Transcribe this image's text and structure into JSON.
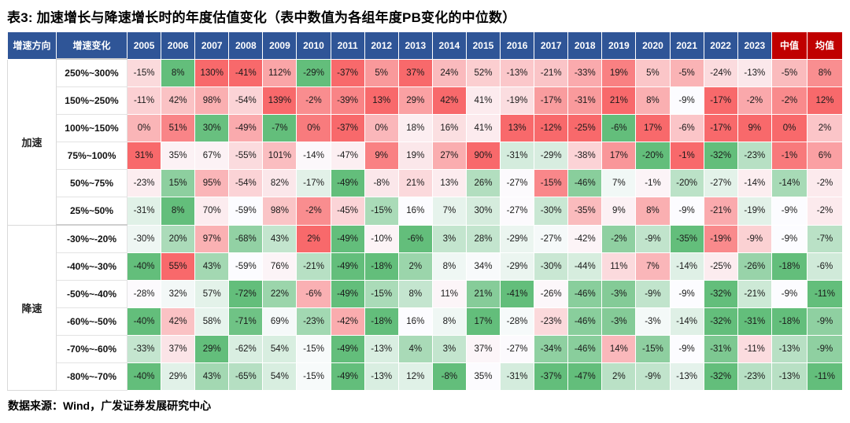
{
  "title": {
    "text": "表3: 加速增长与降速增长时的年度估值变化（表中数值为各组年度PB变化的中位数）"
  },
  "footer": {
    "source": "数据来源：Wind，广发证券发展研究中心"
  },
  "colors": {
    "header_bg": "#2F5597",
    "stat_header_bg": "#C00000",
    "scale_high_red": "#F8696B",
    "scale_mid_white": "#FCFCFF",
    "scale_low_green": "#63BE7B"
  },
  "table": {
    "corner_headers": [
      "增速方向",
      "增速变化"
    ],
    "year_headers": [
      "2005",
      "2006",
      "2007",
      "2008",
      "2009",
      "2010",
      "2011",
      "2012",
      "2013",
      "2014",
      "2015",
      "2016",
      "2017",
      "2018",
      "2019",
      "2020",
      "2021",
      "2022",
      "2023"
    ],
    "stat_headers": [
      "中值",
      "均值"
    ],
    "value_suffix": "%",
    "groups": [
      {
        "direction": "加速",
        "rows": [
          {
            "range": "250%~300%",
            "values": [
              -15,
              8,
              130,
              -41,
              112,
              -29,
              -37,
              5,
              37,
              24,
              52,
              -13,
              -21,
              -33,
              19,
              5,
              -5,
              -24,
              -13,
              -5,
              8
            ]
          },
          {
            "range": "150%~250%",
            "values": [
              -11,
              42,
              98,
              -54,
              139,
              -2,
              -39,
              13,
              29,
              42,
              41,
              -19,
              -17,
              -31,
              21,
              8,
              -9,
              -17,
              -2,
              -2,
              12
            ]
          },
          {
            "range": "100%~150%",
            "values": [
              0,
              51,
              30,
              -49,
              -7,
              0,
              -37,
              0,
              18,
              16,
              41,
              13,
              -12,
              -25,
              -6,
              17,
              -6,
              -17,
              9,
              0,
              2
            ]
          },
          {
            "range": "75%~100%",
            "values": [
              31,
              35,
              67,
              -55,
              101,
              -14,
              -47,
              9,
              19,
              27,
              90,
              -31,
              -29,
              -38,
              17,
              -20,
              -1,
              -32,
              -23,
              -1,
              6
            ]
          },
          {
            "range": "50%~75%",
            "values": [
              -23,
              15,
              95,
              -54,
              82,
              -17,
              -49,
              -8,
              21,
              13,
              26,
              -27,
              -15,
              -46,
              7,
              -1,
              -20,
              -27,
              -14,
              -14,
              -2
            ]
          },
          {
            "range": "25%~50%",
            "values": [
              -31,
              8,
              70,
              -59,
              98,
              -2,
              -45,
              -15,
              16,
              7,
              30,
              -27,
              -30,
              -35,
              9,
              8,
              -9,
              -21,
              -19,
              -9,
              -2
            ]
          }
        ]
      },
      {
        "direction": "降速",
        "rows": [
          {
            "range": "-30%~-20%",
            "values": [
              -30,
              20,
              97,
              -68,
              43,
              2,
              -49,
              -10,
              -6,
              3,
              28,
              -29,
              -27,
              -42,
              -2,
              -9,
              -35,
              -19,
              -9,
              -9,
              -7
            ]
          },
          {
            "range": "-40%~-30%",
            "values": [
              -40,
              55,
              43,
              -59,
              76,
              -21,
              -49,
              -18,
              2,
              8,
              34,
              -29,
              -30,
              -44,
              11,
              7,
              -14,
              -25,
              -26,
              -18,
              -6
            ]
          },
          {
            "range": "-50%~-40%",
            "values": [
              -28,
              32,
              57,
              -72,
              22,
              -6,
              -49,
              -15,
              8,
              11,
              21,
              -41,
              -26,
              -46,
              -3,
              -9,
              -9,
              -32,
              -21,
              -9,
              -11
            ]
          },
          {
            "range": "-60%~-50%",
            "values": [
              -40,
              42,
              58,
              -71,
              69,
              -23,
              -42,
              -18,
              16,
              8,
              17,
              -28,
              -23,
              -46,
              -3,
              -3,
              -14,
              -32,
              -31,
              -18,
              -9
            ]
          },
          {
            "range": "-70%~-60%",
            "values": [
              -33,
              37,
              29,
              -62,
              54,
              -15,
              -49,
              -13,
              4,
              3,
              37,
              -27,
              -34,
              -46,
              14,
              -15,
              -9,
              -31,
              -11,
              -13,
              -9
            ]
          },
          {
            "range": "-80%~-70%",
            "values": [
              -40,
              29,
              43,
              -65,
              54,
              -15,
              -49,
              -13,
              12,
              -8,
              35,
              -31,
              -37,
              -47,
              2,
              -9,
              -13,
              -32,
              -23,
              -13,
              -11
            ]
          }
        ]
      }
    ]
  }
}
